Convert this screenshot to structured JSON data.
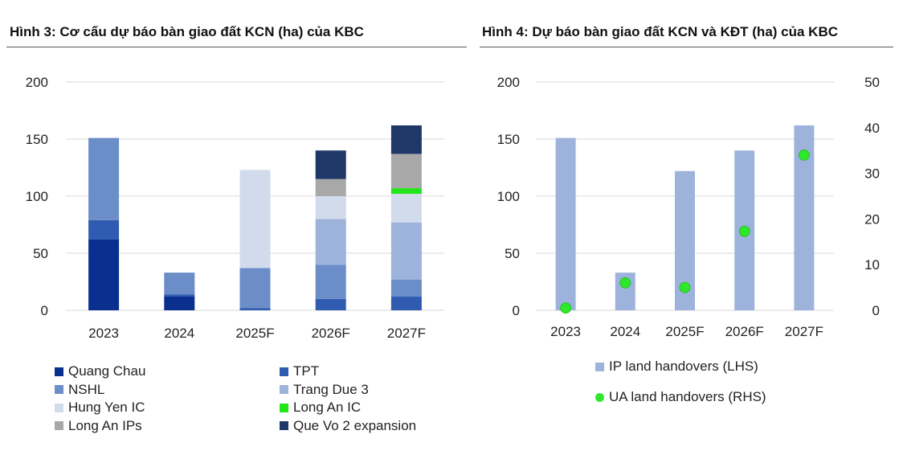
{
  "colors": {
    "Quang Chau": "#0a2f8f",
    "TPT": "#2f5bb0",
    "NSHL": "#6b8dc8",
    "Trang Due 3": "#9db3dc",
    "Hung Yen IC": "#d2dbec",
    "Long An IC": "#22e51c",
    "Long An IPs": "#a8a8a8",
    "Que Vo 2 expansion": "#1f3868",
    "ip_bar": "#9eb3dc",
    "ua_dot": "#2fe82b",
    "grid": "#d9d9d9"
  },
  "chart_data": [
    {
      "type": "bar",
      "stacked": true,
      "title": "Hình 3: Cơ cấu dự báo bàn giao đất KCN (ha) của KBC",
      "categories": [
        "2023",
        "2024",
        "2025F",
        "2026F",
        "2027F"
      ],
      "ylim": [
        0,
        200
      ],
      "yticks": [
        "0",
        "50",
        "100",
        "150",
        "200"
      ],
      "grid": true,
      "legend_position": "bottom",
      "series": [
        {
          "name": "Quang Chau",
          "values": [
            62,
            12,
            0,
            0,
            0
          ]
        },
        {
          "name": "TPT",
          "values": [
            17,
            2,
            2,
            10,
            12
          ]
        },
        {
          "name": "NSHL",
          "values": [
            72,
            19,
            35,
            30,
            15
          ]
        },
        {
          "name": "Trang Due 3",
          "values": [
            0,
            0,
            0,
            40,
            50
          ]
        },
        {
          "name": "Hung Yen IC",
          "values": [
            0,
            0,
            86,
            20,
            25
          ]
        },
        {
          "name": "Long An IC",
          "values": [
            0,
            0,
            0,
            0,
            5
          ]
        },
        {
          "name": "Long An IPs",
          "values": [
            0,
            0,
            0,
            15,
            30
          ]
        },
        {
          "name": "Que Vo 2 expansion",
          "values": [
            0,
            0,
            0,
            25,
            25
          ]
        }
      ],
      "legend": [
        "Quang Chau",
        "TPT",
        "NSHL",
        "Trang Due 3",
        "Hung Yen IC",
        "Long An IC",
        "Long An IPs",
        "Que Vo 2 expansion"
      ]
    },
    {
      "type": "bar",
      "title": "Hình 4: Dự báo bàn giao đất KCN và KĐT (ha) của KBC",
      "categories": [
        "2023",
        "2024",
        "2025F",
        "2026F",
        "2027F"
      ],
      "ylim": [
        0,
        200
      ],
      "yticks": [
        "0",
        "50",
        "100",
        "150",
        "200"
      ],
      "y2lim": [
        0,
        50
      ],
      "y2ticks": [
        "0",
        "10",
        "20",
        "30",
        "40",
        "50"
      ],
      "grid": true,
      "legend_position": "bottom",
      "series": [
        {
          "name": "IP land handovers (LHS)",
          "kind": "bar",
          "axis": "left",
          "values": [
            151,
            33,
            122,
            140,
            162
          ]
        },
        {
          "name": "UA land handovers (RHS)",
          "kind": "scatter",
          "axis": "right",
          "values": [
            0.5,
            6,
            5,
            17.3,
            34
          ]
        }
      ]
    }
  ]
}
